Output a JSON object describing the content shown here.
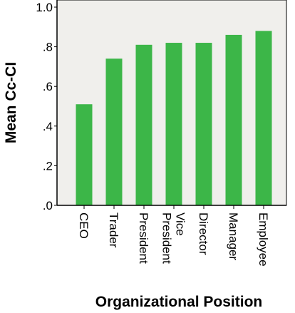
{
  "chart_data": {
    "type": "bar",
    "title": "",
    "xlabel": "Organizational Position",
    "ylabel": "Mean Cc-CI",
    "categories": [
      "CEO",
      "Trader",
      "President",
      "Vice President",
      "Director",
      "Manager",
      "Employee"
    ],
    "category_lines": [
      [
        "CEO"
      ],
      [
        "Trader"
      ],
      [
        "President"
      ],
      [
        "Vice",
        "President"
      ],
      [
        "Director"
      ],
      [
        "Manager"
      ],
      [
        "Employee"
      ]
    ],
    "values": [
      0.51,
      0.74,
      0.81,
      0.82,
      0.82,
      0.86,
      0.88
    ],
    "ylim": [
      0,
      1.0
    ],
    "yticks": [
      ".0",
      ".2",
      ".4",
      ".6",
      ".8",
      "1.0"
    ],
    "grid": false,
    "legend": "none",
    "colors": {
      "bar": "#3cb648",
      "plot_background": "#f0efec",
      "axis": "#000000"
    }
  }
}
